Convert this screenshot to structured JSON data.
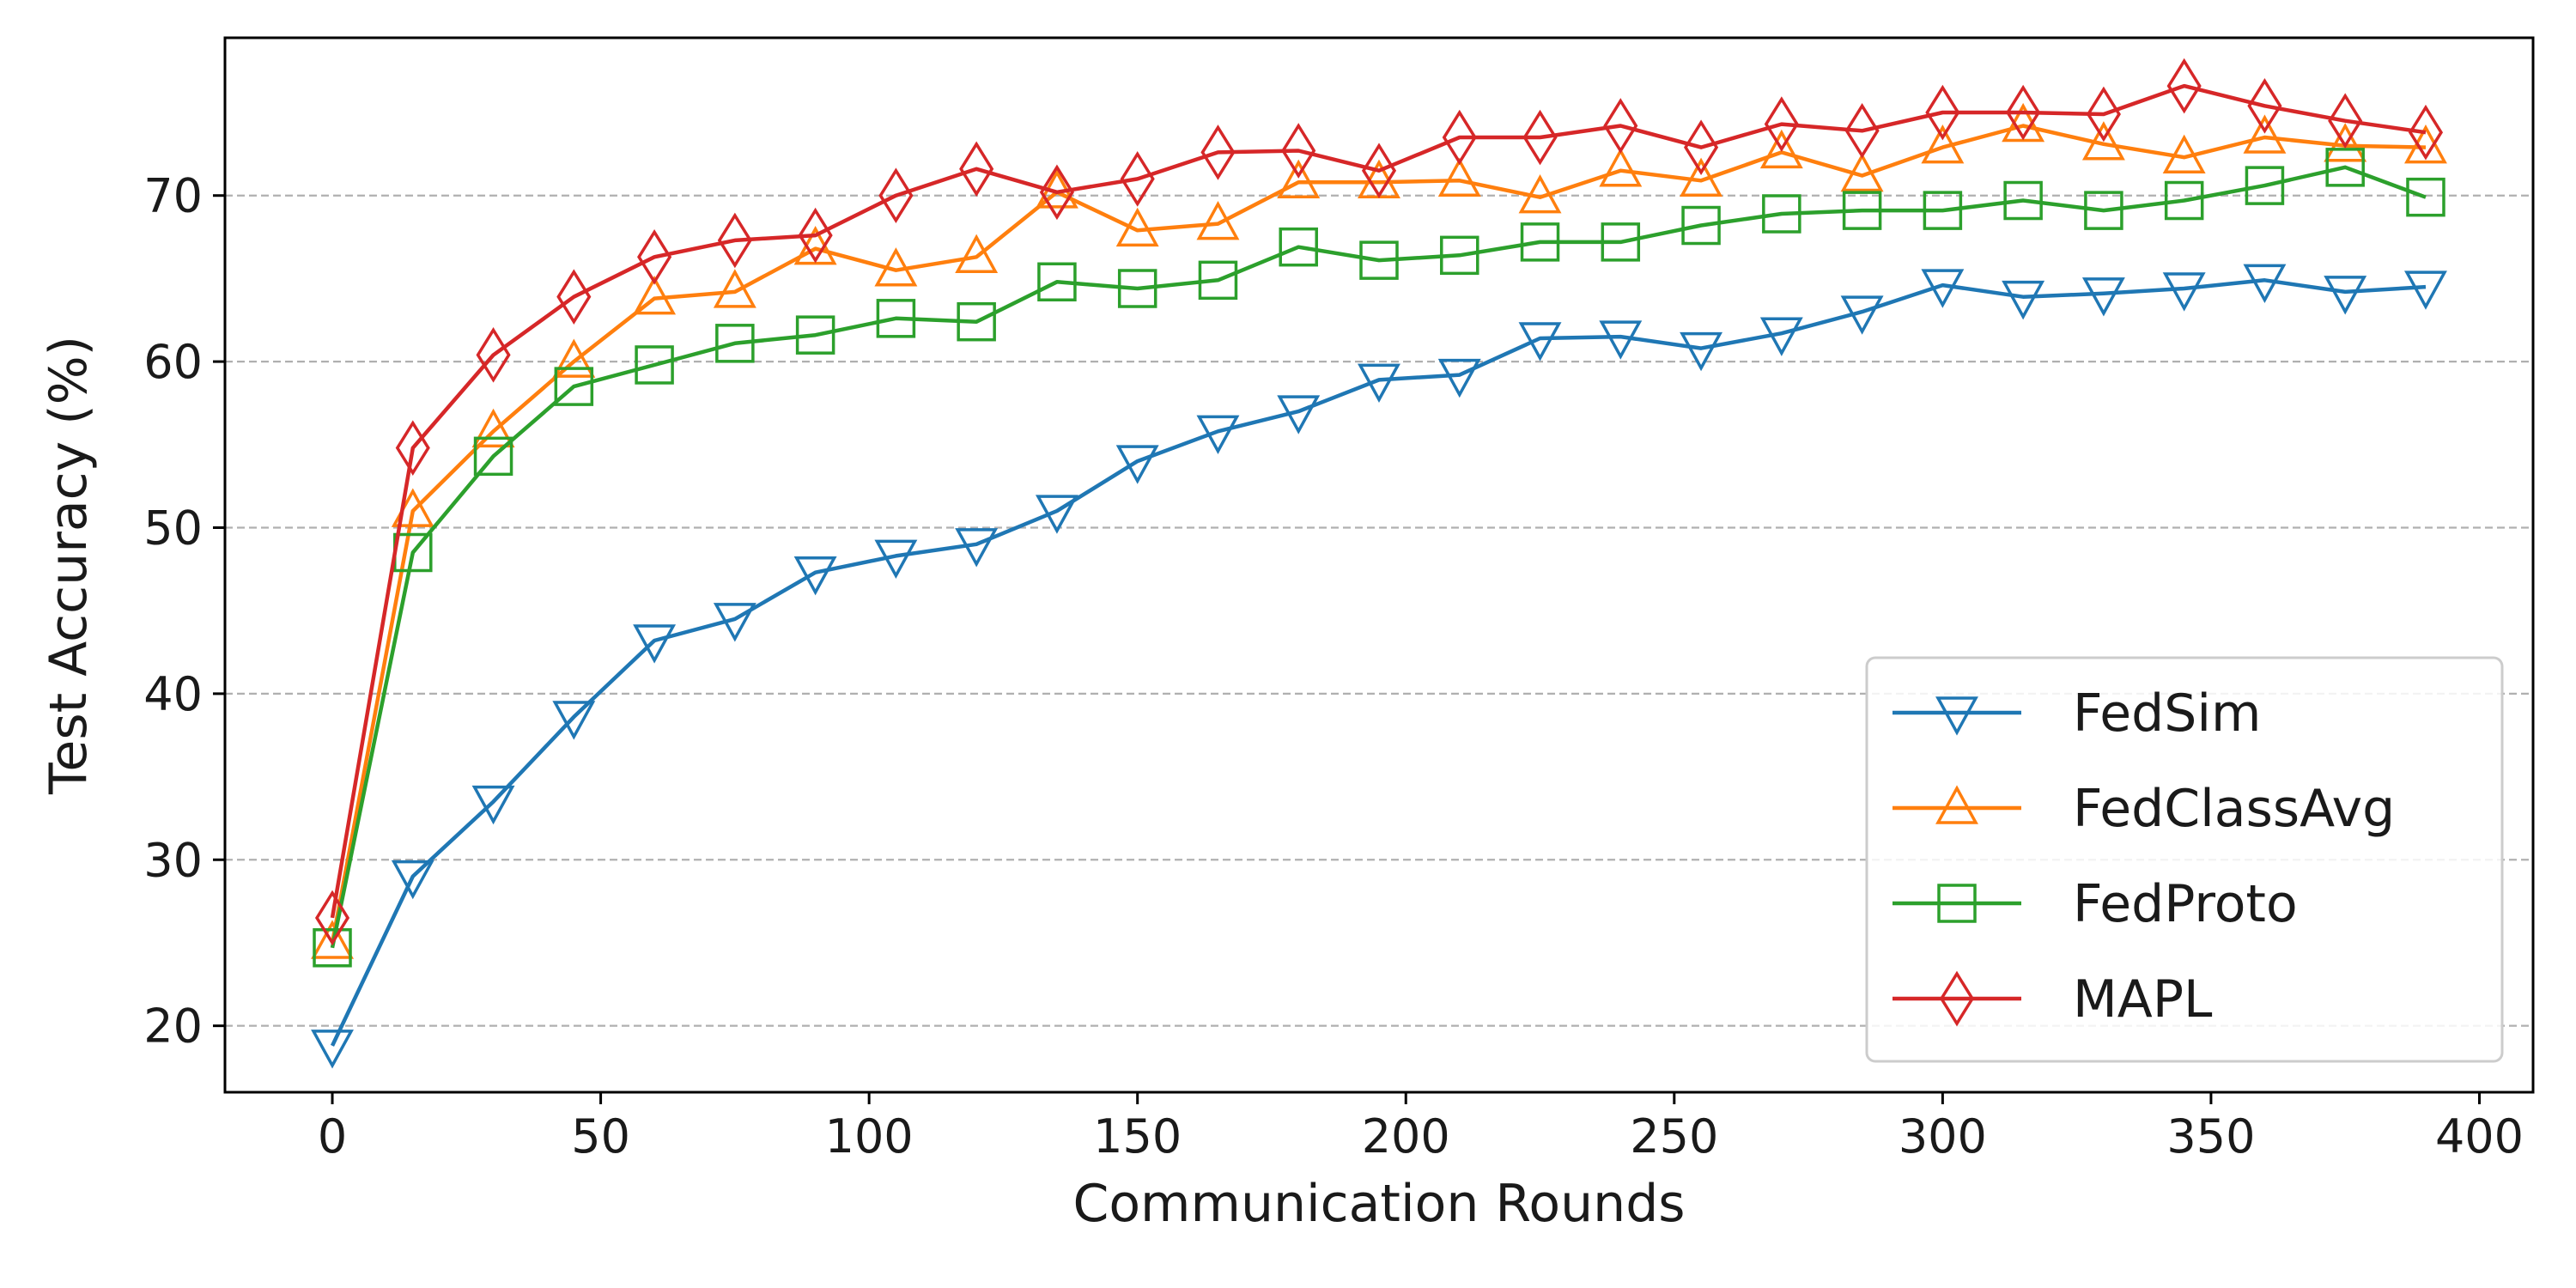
{
  "chart_data": {
    "type": "line",
    "title": "",
    "xlabel": "Communication Rounds",
    "ylabel": "Test Accuracy (%)",
    "xlim": [
      -20,
      410
    ],
    "ylim": [
      16,
      79.5
    ],
    "xticks": [
      0,
      50,
      100,
      150,
      200,
      250,
      300,
      350,
      400
    ],
    "yticks": [
      20,
      30,
      40,
      50,
      60,
      70
    ],
    "grid": "horizontal-dashed",
    "legend_position": "lower-right",
    "x": [
      0,
      15,
      30,
      45,
      60,
      75,
      90,
      105,
      120,
      135,
      150,
      165,
      180,
      195,
      210,
      225,
      240,
      255,
      270,
      285,
      300,
      315,
      330,
      345,
      360,
      375,
      390
    ],
    "series": [
      {
        "name": "FedSim",
        "color": "#1f77b4",
        "marker": "triangle-down",
        "values": [
          18.8,
          29.0,
          33.5,
          38.6,
          43.2,
          44.5,
          47.3,
          48.3,
          49.0,
          51.0,
          54.0,
          55.8,
          57.0,
          58.9,
          59.2,
          61.4,
          61.5,
          60.8,
          61.7,
          63.0,
          64.6,
          63.9,
          64.1,
          64.4,
          64.9,
          64.2,
          64.5
        ]
      },
      {
        "name": "FedClassAvg",
        "color": "#ff7f0e",
        "marker": "triangle-up",
        "values": [
          25.0,
          51.0,
          55.8,
          60.0,
          63.8,
          64.2,
          66.8,
          65.5,
          66.3,
          70.2,
          67.9,
          68.3,
          70.8,
          70.8,
          70.9,
          69.9,
          71.5,
          70.9,
          72.6,
          71.2,
          72.9,
          74.2,
          73.1,
          72.3,
          73.5,
          73.0,
          72.9
        ]
      },
      {
        "name": "FedProto",
        "color": "#2ca02c",
        "marker": "square",
        "values": [
          24.7,
          48.5,
          54.3,
          58.5,
          59.8,
          61.1,
          61.6,
          62.6,
          62.4,
          64.8,
          64.4,
          64.9,
          66.9,
          66.1,
          66.4,
          67.2,
          67.2,
          68.2,
          68.9,
          69.1,
          69.1,
          69.7,
          69.1,
          69.7,
          70.6,
          71.7,
          69.9
        ]
      },
      {
        "name": "MAPL",
        "color": "#d62728",
        "marker": "diamond",
        "values": [
          26.5,
          54.8,
          60.4,
          63.9,
          66.3,
          67.3,
          67.6,
          70.0,
          71.6,
          70.2,
          71.0,
          72.6,
          72.7,
          71.5,
          73.5,
          73.5,
          74.2,
          72.9,
          74.3,
          73.9,
          75.0,
          75.0,
          74.9,
          76.6,
          75.4,
          74.5,
          73.8
        ]
      }
    ]
  }
}
